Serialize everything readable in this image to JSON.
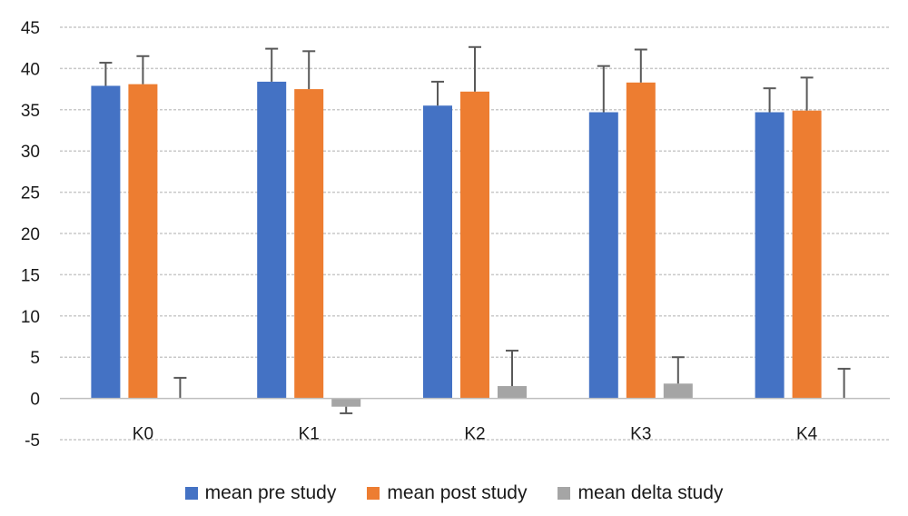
{
  "chart_data": {
    "type": "bar",
    "categories": [
      "K0",
      "K1",
      "K2",
      "K3",
      "K4"
    ],
    "series": [
      {
        "name": "mean pre study",
        "color": "#4472C4",
        "values": [
          37.9,
          38.4,
          35.5,
          34.7,
          34.7
        ],
        "error": [
          2.8,
          4.0,
          2.9,
          5.6,
          2.9
        ]
      },
      {
        "name": "mean post study",
        "color": "#ED7D31",
        "values": [
          38.1,
          37.5,
          37.2,
          38.3,
          34.9
        ],
        "error": [
          3.4,
          4.6,
          5.4,
          4.0,
          4.0
        ]
      },
      {
        "name": "mean delta study",
        "color": "#A5A5A5",
        "values": [
          0.0,
          -1.0,
          1.5,
          1.8,
          0.0
        ],
        "error": [
          2.5,
          0.8,
          4.3,
          3.2,
          3.6
        ]
      }
    ],
    "ylim": [
      -5,
      45
    ],
    "yticks": [
      "45",
      "40",
      "35",
      "30",
      "25",
      "20",
      "15",
      "10",
      "5",
      "0",
      "-5"
    ],
    "ytick_values": [
      45,
      40,
      35,
      30,
      25,
      20,
      15,
      10,
      5,
      0,
      -5
    ],
    "grid": true,
    "legend_position": "bottom",
    "title": "",
    "xlabel": "",
    "ylabel": ""
  }
}
